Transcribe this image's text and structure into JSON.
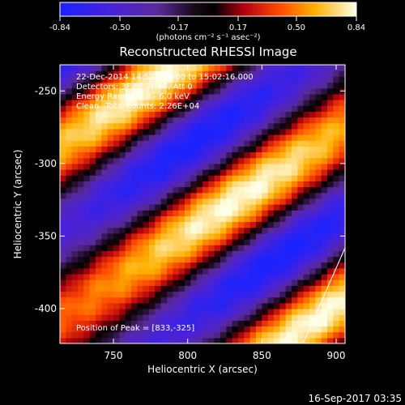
{
  "colorbar": {
    "tick_labels": [
      "-0.84",
      "-0.50",
      "-0.17",
      "0.17",
      "0.50",
      "0.84"
    ],
    "tick_values": [
      -0.84,
      -0.5,
      -0.17,
      0.17,
      0.5,
      0.84
    ],
    "range": [
      -0.84,
      0.84
    ],
    "units_label": "(photons cm⁻² s⁻¹ asec⁻²)"
  },
  "chart_data": {
    "type": "heatmap",
    "title": "Reconstructed RHESSI Image",
    "xlabel": "Heliocentric X (arcsec)",
    "ylabel": "Heliocentric Y (arcsec)",
    "xlim": [
      714,
      906
    ],
    "ylim": [
      -424,
      -232
    ],
    "x_ticks": [
      750,
      800,
      850,
      900
    ],
    "y_ticks": [
      -250,
      -300,
      -350,
      -400
    ],
    "peak": {
      "x": 833,
      "y": -325
    },
    "colormap": "blue-purple-black-red-orange-yellow-white",
    "value_range": [
      -0.84,
      0.84
    ],
    "annotations": {
      "time_range": "22-Dec-2014 14:52:16.000 to 15:02:16.000",
      "detectors": "Detectors: 3F 6F 7F 9F, Att 0",
      "energy_range": "Energy Range: 3.0 - 6.0 keV",
      "method": "Clean",
      "total_counts": "Total counts: 2.26E+04",
      "peak_position": "Position of Peak = [833,-325]"
    }
  },
  "footer": {
    "timestamp": "16-Sep-2017 03:35"
  }
}
